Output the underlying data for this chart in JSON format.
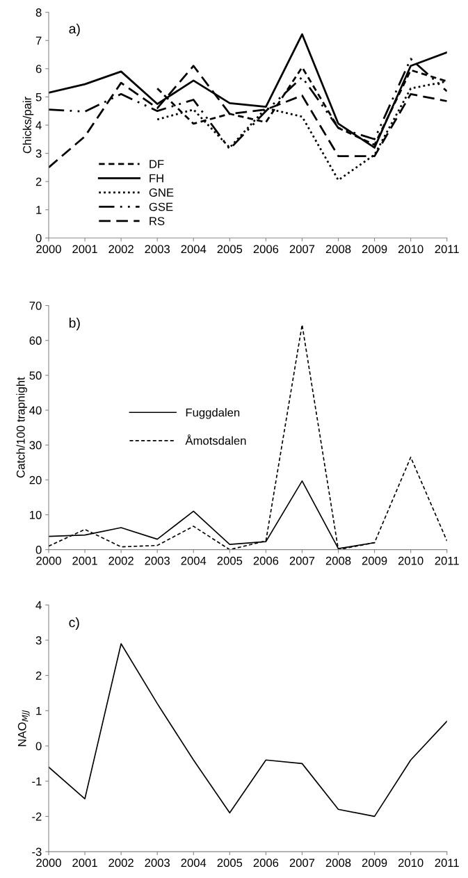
{
  "chart_data": [
    {
      "type": "line",
      "ylabel": "Chicks/pair",
      "annotations": [
        "a)"
      ],
      "categories": [
        "2000",
        "2001",
        "2002",
        "2003",
        "2004",
        "2005",
        "2006",
        "2007",
        "2008",
        "2009",
        "2010",
        "2011"
      ],
      "ylim": [
        0,
        8
      ],
      "yticks": [
        0,
        1,
        2,
        3,
        4,
        5,
        6,
        7,
        8
      ],
      "grid": false,
      "legend": "bottom left",
      "series": [
        {
          "name": "DF",
          "color": "#000000",
          "line_style": "dashed",
          "values": [
            null,
            null,
            null,
            5.3,
            4.05,
            4.4,
            4.1,
            6.05,
            3.9,
            3.3,
            5.95,
            5.55
          ]
        },
        {
          "name": "FH",
          "color": "#000000",
          "line_style": "solid",
          "values": [
            5.15,
            5.45,
            5.9,
            4.75,
            5.58,
            4.78,
            4.65,
            7.22,
            4.05,
            3.2,
            6.1,
            6.58
          ]
        },
        {
          "name": "GNE",
          "color": "#000000",
          "line_style": "dotted",
          "values": [
            null,
            null,
            null,
            4.2,
            4.55,
            3.2,
            4.6,
            4.3,
            2.05,
            2.95,
            5.3,
            5.55
          ]
        },
        {
          "name": "GSE",
          "color": "#000000",
          "line_style": "dashdot",
          "values": [
            4.55,
            4.48,
            5.1,
            4.5,
            4.9,
            3.15,
            4.5,
            5.7,
            3.9,
            3.5,
            6.35,
            5.2
          ]
        },
        {
          "name": "RS",
          "color": "#000000",
          "line_style": "longdash",
          "values": [
            2.5,
            3.6,
            5.5,
            4.6,
            6.1,
            4.4,
            4.55,
            5.05,
            2.9,
            2.9,
            5.1,
            4.85
          ]
        }
      ]
    },
    {
      "type": "line",
      "ylabel": "Catch/100 trapnight",
      "annotations": [
        "b)"
      ],
      "categories": [
        "2000",
        "2001",
        "2002",
        "2003",
        "2004",
        "2005",
        "2006",
        "2007",
        "2008",
        "2009",
        "2010",
        "2011"
      ],
      "ylim": [
        0,
        70
      ],
      "yticks": [
        0,
        10,
        20,
        30,
        40,
        50,
        60,
        70
      ],
      "grid": false,
      "legend": "center",
      "series": [
        {
          "name": "Fuggdalen",
          "color": "#000000",
          "line_style": "solid",
          "values": [
            3.8,
            4.2,
            6.3,
            3.0,
            11,
            1.5,
            2.3,
            19.7,
            0.3,
            2.0,
            null,
            null
          ]
        },
        {
          "name": "Åmotsdalen",
          "color": "#000000",
          "line_style": "dashed",
          "values": [
            1.0,
            5.8,
            0.8,
            1.2,
            6.7,
            0,
            2.5,
            64.5,
            0,
            2.0,
            26.5,
            2.5
          ]
        }
      ]
    },
    {
      "type": "line",
      "ylabel": "NAO$_{MJJ}$",
      "annotations": [
        "c)"
      ],
      "categories": [
        "2000",
        "2001",
        "2002",
        "2003",
        "2004",
        "2005",
        "2006",
        "2007",
        "2008",
        "2009",
        "2010",
        "2011"
      ],
      "ylim": [
        -3,
        4
      ],
      "yticks": [
        -3,
        -2,
        -1,
        0,
        1,
        2,
        3,
        4
      ],
      "grid": false,
      "legend": false,
      "series": [
        {
          "color": "#000000",
          "line_style": "solid",
          "values": [
            -0.6,
            -1.5,
            2.9,
            1.2,
            -0.4,
            -1.9,
            -0.4,
            -0.5,
            -1.8,
            -2.0,
            -0.4,
            0.7
          ]
        }
      ]
    }
  ]
}
